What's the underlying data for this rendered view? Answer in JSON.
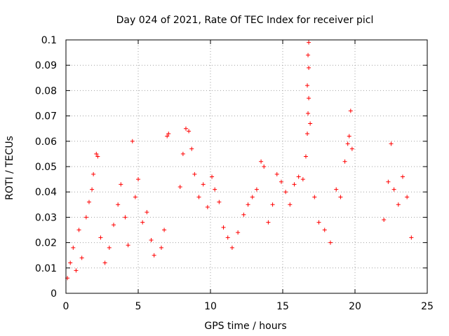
{
  "chart_data": {
    "type": "scatter",
    "title": "Day 024 of 2021, Rate Of TEC Index for receiver picl",
    "xlabel": "GPS time / hours",
    "ylabel": "ROTI / TECUs",
    "xlim": [
      0,
      25
    ],
    "ylim": [
      0,
      0.1
    ],
    "xticks": [
      0,
      5,
      10,
      15,
      20,
      25
    ],
    "xtick_labels": [
      "0",
      "5",
      "10",
      "15",
      "20",
      "25"
    ],
    "yticks": [
      0,
      0.01,
      0.02,
      0.03,
      0.04,
      0.05,
      0.06,
      0.07,
      0.08,
      0.09,
      0.1
    ],
    "ytick_labels": [
      "0",
      "0.01",
      "0.02",
      "0.03",
      "0.04",
      "0.05",
      "0.06",
      "0.07",
      "0.08",
      "0.09",
      "0.1"
    ],
    "grid": true,
    "legend": "none",
    "marker": "+",
    "color": "#ff0000",
    "series": [
      {
        "points": [
          [
            0.1,
            0.006
          ],
          [
            0.3,
            0.012
          ],
          [
            0.5,
            0.018
          ],
          [
            0.7,
            0.009
          ],
          [
            0.9,
            0.025
          ],
          [
            1.1,
            0.014
          ],
          [
            1.4,
            0.03
          ],
          [
            1.6,
            0.036
          ],
          [
            1.8,
            0.041
          ],
          [
            1.9,
            0.047
          ],
          [
            2.1,
            0.055
          ],
          [
            2.2,
            0.054
          ],
          [
            2.4,
            0.022
          ],
          [
            2.7,
            0.012
          ],
          [
            3.0,
            0.018
          ],
          [
            3.3,
            0.027
          ],
          [
            3.6,
            0.035
          ],
          [
            3.8,
            0.043
          ],
          [
            4.1,
            0.03
          ],
          [
            4.3,
            0.019
          ],
          [
            4.6,
            0.06
          ],
          [
            4.8,
            0.038
          ],
          [
            5.0,
            0.045
          ],
          [
            5.3,
            0.028
          ],
          [
            5.6,
            0.032
          ],
          [
            5.9,
            0.021
          ],
          [
            6.1,
            0.015
          ],
          [
            6.6,
            0.018
          ],
          [
            6.8,
            0.025
          ],
          [
            7.0,
            0.062
          ],
          [
            7.1,
            0.063
          ],
          [
            7.9,
            0.042
          ],
          [
            8.1,
            0.055
          ],
          [
            8.3,
            0.065
          ],
          [
            8.5,
            0.064
          ],
          [
            8.7,
            0.057
          ],
          [
            8.9,
            0.047
          ],
          [
            9.2,
            0.038
          ],
          [
            9.5,
            0.043
          ],
          [
            9.8,
            0.034
          ],
          [
            10.1,
            0.046
          ],
          [
            10.3,
            0.041
          ],
          [
            10.6,
            0.036
          ],
          [
            10.9,
            0.026
          ],
          [
            11.2,
            0.022
          ],
          [
            11.5,
            0.018
          ],
          [
            11.9,
            0.024
          ],
          [
            12.3,
            0.031
          ],
          [
            12.6,
            0.035
          ],
          [
            12.9,
            0.038
          ],
          [
            13.2,
            0.041
          ],
          [
            13.5,
            0.052
          ],
          [
            13.7,
            0.05
          ],
          [
            14.0,
            0.028
          ],
          [
            14.3,
            0.035
          ],
          [
            14.6,
            0.047
          ],
          [
            14.9,
            0.044
          ],
          [
            15.2,
            0.04
          ],
          [
            15.5,
            0.035
          ],
          [
            15.8,
            0.043
          ],
          [
            16.1,
            0.046
          ],
          [
            16.4,
            0.045
          ],
          [
            16.6,
            0.054
          ],
          [
            16.7,
            0.063
          ],
          [
            16.8,
            0.099
          ],
          [
            16.75,
            0.094
          ],
          [
            16.8,
            0.089
          ],
          [
            16.7,
            0.082
          ],
          [
            16.8,
            0.077
          ],
          [
            16.75,
            0.071
          ],
          [
            16.9,
            0.067
          ],
          [
            17.2,
            0.038
          ],
          [
            17.5,
            0.028
          ],
          [
            17.9,
            0.025
          ],
          [
            18.3,
            0.02
          ],
          [
            18.7,
            0.041
          ],
          [
            19.0,
            0.038
          ],
          [
            19.3,
            0.052
          ],
          [
            19.5,
            0.059
          ],
          [
            19.6,
            0.062
          ],
          [
            19.7,
            0.072
          ],
          [
            19.8,
            0.057
          ],
          [
            22.0,
            0.029
          ],
          [
            22.3,
            0.044
          ],
          [
            22.5,
            0.059
          ],
          [
            22.7,
            0.041
          ],
          [
            23.0,
            0.035
          ],
          [
            23.3,
            0.046
          ],
          [
            23.6,
            0.038
          ],
          [
            23.9,
            0.022
          ]
        ]
      }
    ]
  }
}
